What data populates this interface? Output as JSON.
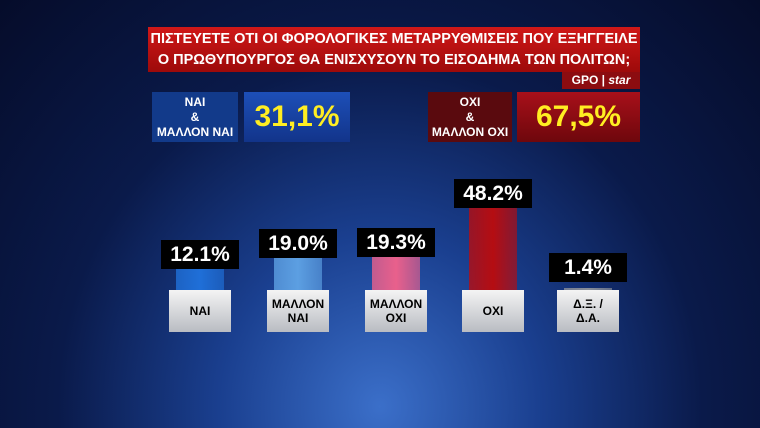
{
  "chart_data": {
    "type": "bar",
    "title": [
      "ΠΙΣΤΕΥΕΤΕ ΟΤΙ ΟΙ ΦΟΡΟΛΟΓΙΚΕΣ ΜΕΤΑΡΡΥΘΜΙΣΕΙΣ ΠΟΥ ΕΞΗΓΓΕΙΛΕ",
      "Ο ΠΡΩΘΥΠΟΥΡΓΟΣ ΘΑ ΕΝΙΣΧΥΣΟΥΝ ΤΟ ΕΙΣΟΔΗΜΑ ΤΩΝ ΠΟΛΙΤΩΝ;"
    ],
    "source": [
      "GPO",
      "star"
    ],
    "summary": [
      {
        "label": [
          "ΝΑΙ",
          "&",
          "ΜΑΛΛΟΝ ΝΑΙ"
        ],
        "value": 31.1,
        "value_label": "31,1%"
      },
      {
        "label": [
          "ΟΧΙ",
          "&",
          "ΜΑΛΛΟΝ ΟΧΙ"
        ],
        "value": 67.5,
        "value_label": "67,5%"
      }
    ],
    "categories": [
      "ΝΑΙ",
      "ΜΑΛΛΟΝ ΝΑΙ",
      "ΜΑΛΛΟΝ ΟΧΙ",
      "ΟΧΙ",
      "Δ.Ξ. / Δ.Α."
    ],
    "values": [
      12.1,
      19.0,
      19.3,
      48.2,
      1.4
    ],
    "value_labels": [
      "12.1%",
      "19.0%",
      "19.3%",
      "48.2%",
      "1.4%"
    ],
    "colors": [
      "#1f6fd8",
      "#5c9fe2",
      "#e9608c",
      "#b50d12",
      "#8a8f98"
    ]
  }
}
